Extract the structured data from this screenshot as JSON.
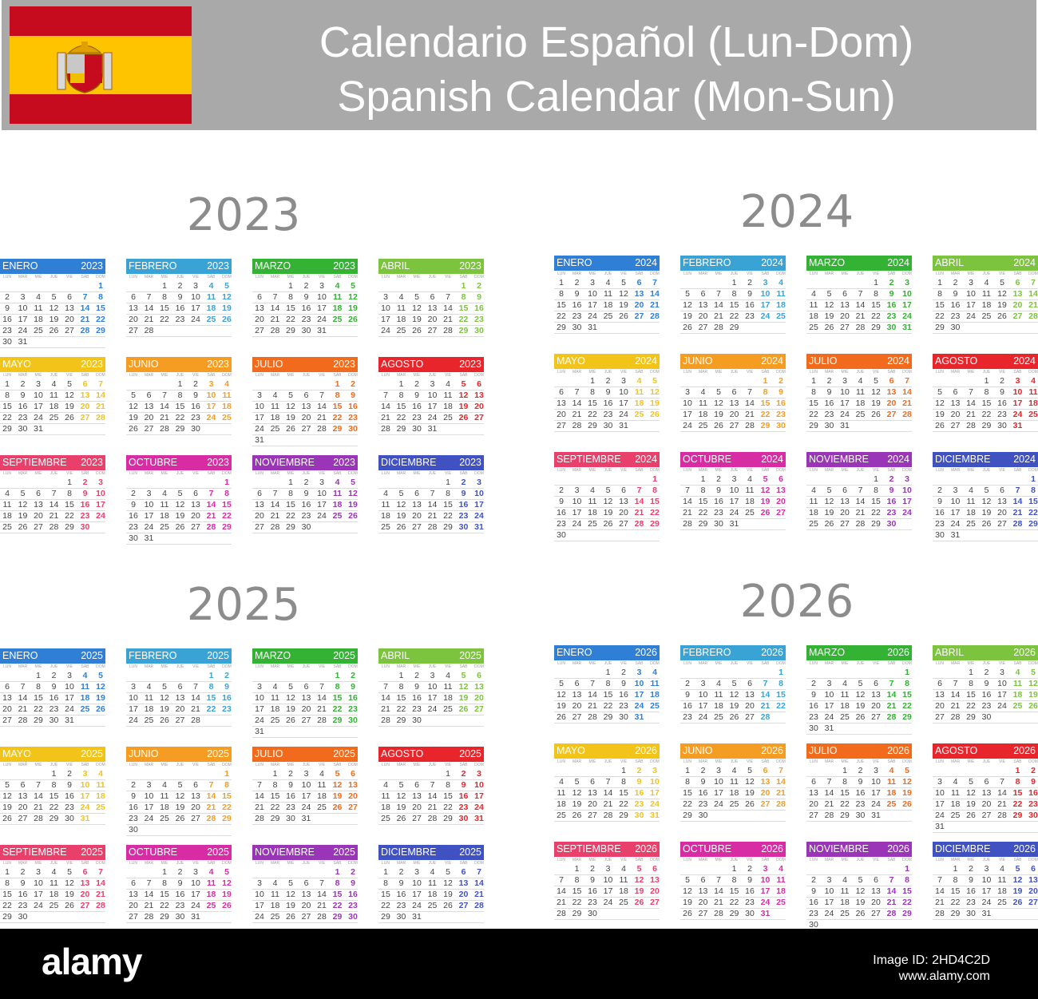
{
  "header": {
    "title_es": "Calendario Español (Lun-Dom)",
    "title_en": "Spanish Calendar (Mon-Sun)",
    "flag": {
      "stripe_color": "#c60b1e",
      "center_color": "#ffc400",
      "icon": "spain-coat-of-arms-icon"
    }
  },
  "weekdays": [
    "LUN",
    "MAR",
    "MIÉ",
    "JUE",
    "VIE",
    "SÁB",
    "DOM"
  ],
  "months": [
    "ENERO",
    "FEBRERO",
    "MARZO",
    "ABRIL",
    "MAYO",
    "JUNIO",
    "JULIO",
    "AGOSTO",
    "SEPTIEMBRE",
    "OCTUBRE",
    "NOVIEMBRE",
    "DICIEMBRE"
  ],
  "month_colors": [
    "#2f7fd6",
    "#3aa3d6",
    "#33b233",
    "#7cc43d",
    "#f2c318",
    "#f59d23",
    "#f26a1b",
    "#e8252a",
    "#e83f6b",
    "#d82ca5",
    "#9a35b7",
    "#4052c2"
  ],
  "years": [
    2023,
    2024,
    2025,
    2026
  ],
  "footer": {
    "brand": "alamy",
    "image_id_label": "Image ID: 2HD4C2D",
    "site": "www.alamy.com"
  }
}
